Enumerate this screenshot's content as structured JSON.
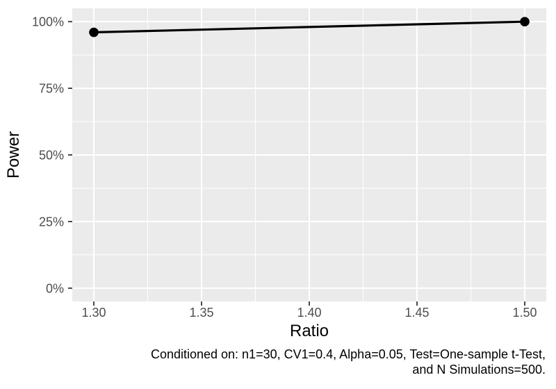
{
  "chart_data": {
    "type": "line",
    "title": "",
    "xlabel": "Ratio",
    "ylabel": "Power",
    "x": [
      1.3,
      1.5
    ],
    "series": [
      {
        "name": "Power",
        "values": [
          0.96,
          1.0
        ]
      }
    ],
    "xlim": [
      1.29,
      1.51
    ],
    "ylim": [
      -0.05,
      1.05
    ],
    "x_ticks": [
      {
        "value": 1.3,
        "label": "1.30"
      },
      {
        "value": 1.35,
        "label": "1.35"
      },
      {
        "value": 1.4,
        "label": "1.40"
      },
      {
        "value": 1.45,
        "label": "1.45"
      },
      {
        "value": 1.5,
        "label": "1.50"
      }
    ],
    "y_ticks": [
      {
        "value": 0.0,
        "label": "0%"
      },
      {
        "value": 0.25,
        "label": "25%"
      },
      {
        "value": 0.5,
        "label": "50%"
      },
      {
        "value": 0.75,
        "label": "75%"
      },
      {
        "value": 1.0,
        "label": "100%"
      }
    ],
    "x_minor": [
      1.325,
      1.375,
      1.425,
      1.475
    ],
    "y_minor": [
      0.125,
      0.375,
      0.625,
      0.875
    ],
    "grid": "major+minor",
    "legend_position": "none",
    "caption_lines": [
      "Conditioned on: n1=30, CV1=0.4, Alpha=0.05, Test=One-sample t-Test,",
      "and N Simulations=500."
    ],
    "colors": {
      "panel_bg": "#EBEBEB",
      "grid": "#FFFFFF",
      "line": "#000000",
      "point": "#000000",
      "axis_text": "#4D4D4D",
      "tick": "#333333",
      "title_text": "#000000"
    }
  }
}
